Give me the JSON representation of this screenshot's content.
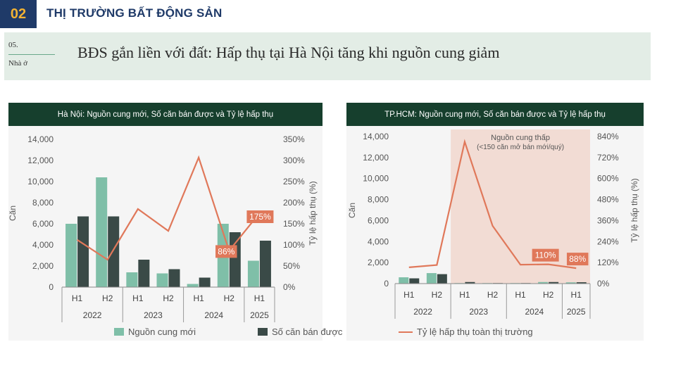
{
  "header": {
    "section_number": "02",
    "section_title": "THỊ TRƯỜNG BẤT ĐỘNG SẢN"
  },
  "banner": {
    "number": "05.",
    "subtitle": "Nhà ở",
    "headline": "BĐS gắn liền với đất: Hấp thụ tại Hà Nội tăng khi nguồn cung giảm"
  },
  "legend": {
    "supply": "Nguồn cung mới",
    "sold": "Số căn bán được",
    "absorption": "Tỷ lệ hấp thụ toàn thị trường"
  },
  "colors": {
    "supply": "#7fbfa8",
    "sold": "#3a4a47",
    "absorption": "#e0785a",
    "header": "#163f2d",
    "shade": "#f2dcd4"
  },
  "chart_data": [
    {
      "type": "bar",
      "title": "Hà Nội: Nguồn cung mới, Số căn bán được và Tỷ lệ hấp thụ",
      "ylabel": "Căn",
      "y2label": "Tỷ lệ hấp thụ (%)",
      "ylim": [
        0,
        14000
      ],
      "y2lim": [
        0,
        350
      ],
      "yticks": [
        "0",
        "2,000",
        "4,000",
        "6,000",
        "8,000",
        "10,000",
        "12,000",
        "14,000"
      ],
      "y2ticks": [
        "0%",
        "50%",
        "100%",
        "150%",
        "200%",
        "250%",
        "300%",
        "350%"
      ],
      "categories": [
        "H1",
        "H2",
        "H1",
        "H2",
        "H1",
        "H2",
        "H1"
      ],
      "groups": [
        {
          "label": "2022",
          "size": 2
        },
        {
          "label": "2023",
          "size": 2
        },
        {
          "label": "2024",
          "size": 2
        },
        {
          "label": "2025",
          "size": 1
        }
      ],
      "series": [
        {
          "name": "Nguồn cung mới",
          "values": [
            6000,
            10400,
            1400,
            1300,
            300,
            6000,
            2500
          ]
        },
        {
          "name": "Số căn bán được",
          "values": [
            6700,
            6700,
            2600,
            1700,
            900,
            5200,
            4400
          ]
        },
        {
          "name": "Tỷ lệ hấp thụ toàn thị trường",
          "axis": "right",
          "values": [
            112,
            65,
            185,
            133,
            307,
            86,
            175
          ]
        }
      ],
      "annotations": [
        {
          "index": 5,
          "text": "86%"
        },
        {
          "index": 6,
          "text": "175%"
        }
      ]
    },
    {
      "type": "bar",
      "title": "TP.HCM: Nguồn cung mới, Số căn bán được và Tỷ lệ hấp thụ",
      "ylabel": "Căn",
      "y2label": "Tỷ lệ hấp thụ (%)",
      "ylim": [
        0,
        14000
      ],
      "y2lim": [
        0,
        840
      ],
      "yticks": [
        "0",
        "2,000",
        "4,000",
        "6,000",
        "8,000",
        "10,000",
        "12,000",
        "14,000"
      ],
      "y2ticks": [
        "0%",
        "120%",
        "240%",
        "360%",
        "480%",
        "600%",
        "720%",
        "840%"
      ],
      "categories": [
        "H1",
        "H2",
        "H1",
        "H2",
        "H1",
        "H2",
        "H1"
      ],
      "groups": [
        {
          "label": "2022",
          "size": 2
        },
        {
          "label": "2023",
          "size": 2
        },
        {
          "label": "2024",
          "size": 2
        },
        {
          "label": "2025",
          "size": 1
        }
      ],
      "series": [
        {
          "name": "Nguồn cung mới",
          "values": [
            600,
            1000,
            50,
            50,
            50,
            150,
            120
          ]
        },
        {
          "name": "Số căn bán được",
          "values": [
            500,
            900,
            150,
            50,
            50,
            150,
            130
          ]
        },
        {
          "name": "Tỷ lệ hấp thụ toàn thị trường",
          "axis": "right",
          "values": [
            93,
            106,
            810,
            330,
            108,
            110,
            88
          ]
        }
      ],
      "shaded_region": {
        "from_index": 2,
        "to_index": 6,
        "label": "Nguồn cung thấp",
        "label2": "(<150 căn mở bán mới/quý)"
      },
      "annotations": [
        {
          "index": 5,
          "text": "110%"
        },
        {
          "index": 6,
          "text": "88%"
        }
      ]
    }
  ]
}
